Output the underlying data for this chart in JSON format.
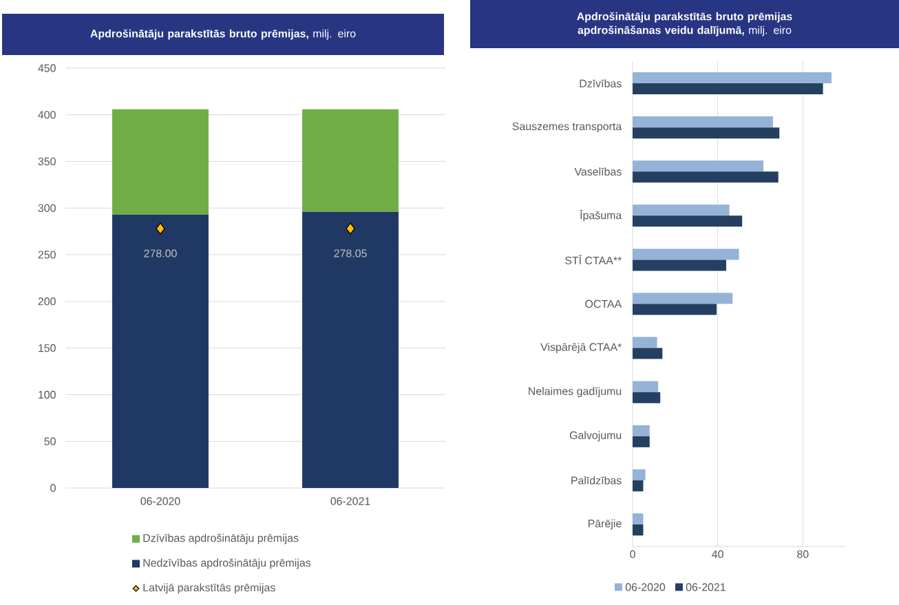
{
  "chart_data": [
    {
      "type": "bar",
      "title": "**Apdrošinātāju parakstītās bruto prēmijas,** milj. eiro",
      "categories": [
        "06-2020",
        "06-2021"
      ],
      "stacked": true,
      "series": [
        {
          "name": "Nedzīvības apdrošinātāju prēmijas",
          "color": "#203864",
          "values": [
            293,
            296
          ]
        },
        {
          "name": "Dzīvības apdrošinātāju prēmijas",
          "color": "#70ad47",
          "values": [
            113,
            110
          ]
        },
        {
          "name": "Latvijā parakstītās prēmijas",
          "type": "scatter",
          "x": [
            "06-2020",
            "06-2021"
          ],
          "values": [
            278.0,
            278.05
          ],
          "color": "#ffc000",
          "marker": "diamond",
          "value_labels": [
            "278.00",
            "278.05"
          ]
        }
      ],
      "ylim": [
        0,
        450
      ],
      "yticks": [
        0,
        50,
        100,
        150,
        200,
        250,
        300,
        350,
        400,
        450
      ],
      "grid": "y",
      "legend": "bottom"
    },
    {
      "type": "bar",
      "orientation": "horizontal",
      "title": "**Apdrošinātāju parakstītās bruto prēmijas apdrošināšanas veidu dalījumā,** milj. eiro",
      "categories": [
        "Dzīvības",
        "Sauszemes transporta",
        "Vaselības",
        "Īpašuma",
        "STĪ CTAA**",
        "OCTAA",
        "Vispārējā CTAA*",
        "Nelaimes gadījumu",
        "Galvojumu",
        "Palīdzības",
        "Pārējie"
      ],
      "series": [
        {
          "name": "06-2020",
          "color": "#95b3d7",
          "values": [
            93.5,
            66,
            61.5,
            45.5,
            50,
            47,
            11.5,
            12,
            8,
            6,
            5
          ]
        },
        {
          "name": "06-2021",
          "color": "#243f60",
          "values": [
            89.5,
            69,
            68.5,
            51.5,
            44,
            39.5,
            14,
            13,
            8,
            5,
            5
          ]
        }
      ],
      "xlim": [
        0,
        100
      ],
      "xticks": [
        0,
        40,
        80
      ],
      "grid": "x",
      "legend": "bottom"
    }
  ]
}
